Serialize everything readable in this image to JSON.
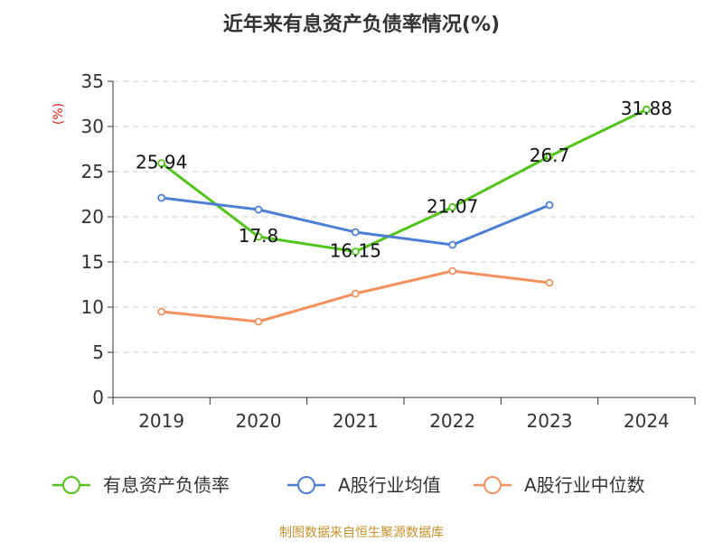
{
  "chart_data": {
    "type": "line",
    "title": "近年来有息资产负债率情况(%)",
    "ylabel": "(%)",
    "categories": [
      "2019",
      "2020",
      "2021",
      "2022",
      "2023",
      "2024"
    ],
    "ylim": [
      0,
      35
    ],
    "yticks": [
      0,
      5,
      10,
      15,
      20,
      25,
      30,
      35
    ],
    "grid": true,
    "legend_position": "bottom",
    "series": [
      {
        "name": "有息资产负债率",
        "color": "#52c41a",
        "show_labels": true,
        "values": [
          25.94,
          17.8,
          16.15,
          21.07,
          26.7,
          31.88
        ],
        "labels": [
          "25.94",
          "17.8",
          "16.15",
          "21.07",
          "26.7",
          "31.88"
        ]
      },
      {
        "name": "A股行业均值",
        "color": "#4e7fd6",
        "show_labels": false,
        "values": [
          22.1,
          20.8,
          18.3,
          16.9,
          21.3,
          null
        ]
      },
      {
        "name": "A股行业中位数",
        "color": "#f4915f",
        "show_labels": false,
        "values": [
          9.5,
          8.4,
          11.5,
          14.0,
          12.7,
          null
        ]
      }
    ],
    "source": "制图数据来自恒生聚源数据库"
  }
}
